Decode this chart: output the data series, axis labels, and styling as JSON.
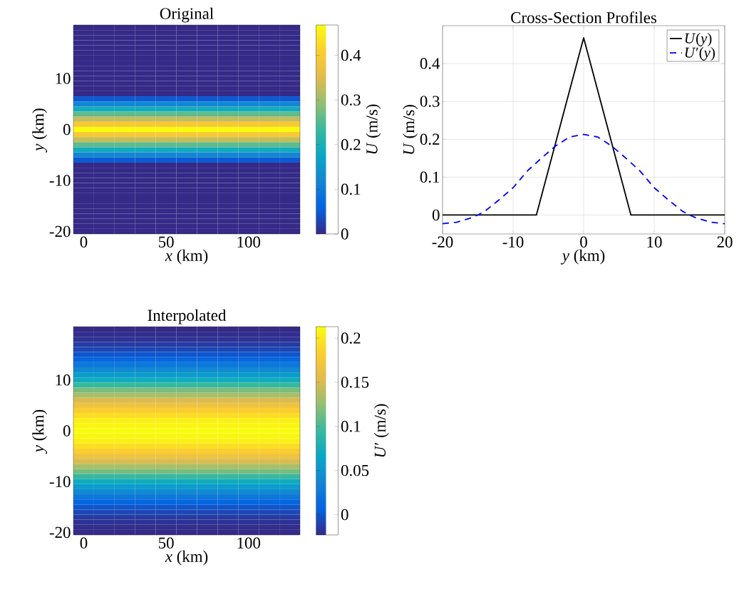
{
  "chart_data": [
    {
      "type": "heatmap",
      "title": "Original",
      "xlabel": "*x* (km)",
      "ylabel": "*y* (km)",
      "clabel": "*U* (m/s)",
      "categories": [
        "0",
        null,
        null,
        null,
        "50",
        null,
        null,
        null,
        "100",
        null,
        null
      ],
      "y_categories": [
        null,
        null,
        null,
        null,
        null,
        null,
        null,
        null,
        null,
        null,
        "10",
        null,
        null,
        null,
        null,
        null,
        null,
        null,
        null,
        null,
        "0",
        null,
        null,
        null,
        null,
        null,
        null,
        null,
        null,
        null,
        "-10",
        null,
        null,
        null,
        null,
        null,
        null,
        null,
        null,
        null,
        "-20"
      ],
      "cells": [
        [
          0,
          0,
          0,
          0,
          0,
          0,
          0,
          0,
          0,
          0,
          0
        ],
        [
          0,
          0,
          0,
          0,
          0,
          0,
          0,
          0,
          0,
          0,
          0
        ],
        [
          0,
          0,
          0,
          0,
          0,
          0,
          0,
          0,
          0,
          0,
          0
        ],
        [
          0,
          0,
          0,
          0,
          0,
          0,
          0,
          0,
          0,
          0,
          0
        ],
        [
          0,
          0,
          0,
          0,
          0,
          0,
          0,
          0,
          0,
          0,
          0
        ],
        [
          0,
          0,
          0,
          0,
          0,
          0,
          0,
          0,
          0,
          0,
          0
        ],
        [
          0,
          0,
          0,
          0,
          0,
          0,
          0,
          0,
          0,
          0,
          0
        ],
        [
          0,
          0,
          0,
          0,
          0,
          0,
          0,
          0,
          0,
          0,
          0
        ],
        [
          0,
          0,
          0,
          0,
          0,
          0,
          0,
          0,
          0,
          0,
          0
        ],
        [
          0,
          0,
          0,
          0,
          0,
          0,
          0,
          0,
          0,
          0,
          0
        ],
        [
          0,
          0,
          0,
          0,
          0,
          0,
          0,
          0,
          0,
          0,
          0
        ],
        [
          0,
          0,
          0,
          0,
          0,
          0,
          0,
          0,
          0,
          0,
          0
        ],
        [
          0,
          0,
          0,
          0,
          0,
          0,
          0,
          0,
          0,
          0,
          0
        ],
        [
          0,
          0,
          0,
          0,
          0,
          0,
          0,
          0,
          0,
          0,
          0
        ],
        [
          0.049,
          0.049,
          0.049,
          0.049,
          0.049,
          0.049,
          0.049,
          0.049,
          0.049,
          0.049,
          0.049
        ],
        [
          0.119,
          0.119,
          0.119,
          0.119,
          0.119,
          0.119,
          0.119,
          0.119,
          0.119,
          0.119,
          0.119
        ],
        [
          0.189,
          0.189,
          0.189,
          0.189,
          0.189,
          0.189,
          0.189,
          0.189,
          0.189,
          0.189,
          0.189
        ],
        [
          0.258,
          0.258,
          0.258,
          0.258,
          0.258,
          0.258,
          0.258,
          0.258,
          0.258,
          0.258,
          0.258
        ],
        [
          0.328,
          0.328,
          0.328,
          0.328,
          0.328,
          0.328,
          0.328,
          0.328,
          0.328,
          0.328,
          0.328
        ],
        [
          0.398,
          0.398,
          0.398,
          0.398,
          0.398,
          0.398,
          0.398,
          0.398,
          0.398,
          0.398,
          0.398
        ],
        [
          0.468,
          0.468,
          0.468,
          0.468,
          0.468,
          0.468,
          0.468,
          0.468,
          0.468,
          0.468,
          0.468
        ],
        [
          0.398,
          0.398,
          0.398,
          0.398,
          0.398,
          0.398,
          0.398,
          0.398,
          0.398,
          0.398,
          0.398
        ],
        [
          0.328,
          0.328,
          0.328,
          0.328,
          0.328,
          0.328,
          0.328,
          0.328,
          0.328,
          0.328,
          0.328
        ],
        [
          0.258,
          0.258,
          0.258,
          0.258,
          0.258,
          0.258,
          0.258,
          0.258,
          0.258,
          0.258,
          0.258
        ],
        [
          0.189,
          0.189,
          0.189,
          0.189,
          0.189,
          0.189,
          0.189,
          0.189,
          0.189,
          0.189,
          0.189
        ],
        [
          0.119,
          0.119,
          0.119,
          0.119,
          0.119,
          0.119,
          0.119,
          0.119,
          0.119,
          0.119,
          0.119
        ],
        [
          0.049,
          0.049,
          0.049,
          0.049,
          0.049,
          0.049,
          0.049,
          0.049,
          0.049,
          0.049,
          0.049
        ],
        [
          0,
          0,
          0,
          0,
          0,
          0,
          0,
          0,
          0,
          0,
          0
        ],
        [
          0,
          0,
          0,
          0,
          0,
          0,
          0,
          0,
          0,
          0,
          0
        ],
        [
          0,
          0,
          0,
          0,
          0,
          0,
          0,
          0,
          0,
          0,
          0
        ],
        [
          0,
          0,
          0,
          0,
          0,
          0,
          0,
          0,
          0,
          0,
          0
        ],
        [
          0,
          0,
          0,
          0,
          0,
          0,
          0,
          0,
          0,
          0,
          0
        ],
        [
          0,
          0,
          0,
          0,
          0,
          0,
          0,
          0,
          0,
          0,
          0
        ],
        [
          0,
          0,
          0,
          0,
          0,
          0,
          0,
          0,
          0,
          0,
          0
        ],
        [
          0,
          0,
          0,
          0,
          0,
          0,
          0,
          0,
          0,
          0,
          0
        ],
        [
          0,
          0,
          0,
          0,
          0,
          0,
          0,
          0,
          0,
          0,
          0
        ],
        [
          0,
          0,
          0,
          0,
          0,
          0,
          0,
          0,
          0,
          0,
          0
        ],
        [
          0,
          0,
          0,
          0,
          0,
          0,
          0,
          0,
          0,
          0,
          0
        ],
        [
          0,
          0,
          0,
          0,
          0,
          0,
          0,
          0,
          0,
          0,
          0
        ],
        [
          0,
          0,
          0,
          0,
          0,
          0,
          0,
          0,
          0,
          0,
          0
        ],
        [
          0,
          0,
          0,
          0,
          0,
          0,
          0,
          0,
          0,
          0,
          0
        ]
      ],
      "clim": [
        0,
        0.468
      ],
      "cticks": [
        0,
        0.1,
        0.2,
        0.3,
        0.4
      ]
    },
    {
      "type": "line",
      "title": "Cross-Section Profiles",
      "xlabel": "*y* (km)",
      "ylabel": "*U* (m/s)",
      "xlim": [
        -20,
        20
      ],
      "xticks": [
        -20,
        -10,
        0,
        10,
        20
      ],
      "ylim": [
        -0.05,
        0.5
      ],
      "yticks": [
        0,
        0.1,
        0.2,
        0.3,
        0.4
      ],
      "grid": true,
      "legend": "top right",
      "series": [
        {
          "name": "*U*(*y*)",
          "color": "#000000",
          "line_style": "solid",
          "x": [
            -20,
            -6.7,
            0,
            6.7,
            20
          ],
          "values": [
            0,
            0,
            0.468,
            0,
            0
          ]
        },
        {
          "name": "*U*′(*y*)",
          "color": "#0000ff",
          "line_style": "dashed",
          "x": [
            -20,
            -18,
            -16,
            -15,
            -14,
            -12,
            -10,
            -8,
            -6,
            -4,
            -2,
            0,
            2,
            4,
            6,
            8,
            10,
            12,
            14,
            15,
            16,
            18,
            20
          ],
          "values": [
            -0.023,
            -0.019,
            -0.008,
            0,
            0.01,
            0.04,
            0.072,
            0.116,
            0.15,
            0.182,
            0.206,
            0.213,
            0.206,
            0.182,
            0.15,
            0.116,
            0.072,
            0.04,
            0.01,
            0,
            -0.008,
            -0.019,
            -0.023
          ]
        }
      ]
    },
    {
      "type": "heatmap",
      "title": "Interpolated",
      "xlabel": "*x* (km)",
      "ylabel": "*y* (km)",
      "clabel": "*U*′ (m/s)",
      "categories": [
        "0",
        null,
        null,
        null,
        "50",
        null,
        null,
        null,
        "100",
        null,
        null
      ],
      "y_categories": [
        null,
        null,
        null,
        null,
        null,
        null,
        null,
        null,
        null,
        null,
        "10",
        null,
        null,
        null,
        null,
        null,
        null,
        null,
        null,
        null,
        "0",
        null,
        null,
        null,
        null,
        null,
        null,
        null,
        null,
        null,
        "-10",
        null,
        null,
        null,
        null,
        null,
        null,
        null,
        null,
        null,
        "-20"
      ],
      "cells": [
        [
          -0.023,
          -0.023,
          -0.023,
          -0.023,
          -0.023,
          -0.023,
          -0.023,
          -0.023,
          -0.023,
          -0.023,
          -0.023
        ],
        [
          -0.021,
          -0.021,
          -0.021,
          -0.021,
          -0.021,
          -0.021,
          -0.021,
          -0.021,
          -0.021,
          -0.021,
          -0.021
        ],
        [
          -0.019,
          -0.019,
          -0.019,
          -0.019,
          -0.019,
          -0.019,
          -0.019,
          -0.019,
          -0.019,
          -0.019,
          -0.019
        ],
        [
          -0.014,
          -0.014,
          -0.014,
          -0.014,
          -0.014,
          -0.014,
          -0.014,
          -0.014,
          -0.014,
          -0.014,
          -0.014
        ],
        [
          -0.008,
          -0.008,
          -0.008,
          -0.008,
          -0.008,
          -0.008,
          -0.008,
          -0.008,
          -0.008,
          -0.008,
          -0.008
        ],
        [
          0,
          0,
          0,
          0,
          0,
          0,
          0,
          0,
          0,
          0,
          0
        ],
        [
          0.01,
          0.01,
          0.01,
          0.01,
          0.01,
          0.01,
          0.01,
          0.01,
          0.01,
          0.01,
          0.01
        ],
        [
          0.025,
          0.025,
          0.025,
          0.025,
          0.025,
          0.025,
          0.025,
          0.025,
          0.025,
          0.025,
          0.025
        ],
        [
          0.04,
          0.04,
          0.04,
          0.04,
          0.04,
          0.04,
          0.04,
          0.04,
          0.04,
          0.04,
          0.04
        ],
        [
          0.056,
          0.056,
          0.056,
          0.056,
          0.056,
          0.056,
          0.056,
          0.056,
          0.056,
          0.056,
          0.056
        ],
        [
          0.072,
          0.072,
          0.072,
          0.072,
          0.072,
          0.072,
          0.072,
          0.072,
          0.072,
          0.072,
          0.072
        ],
        [
          0.094,
          0.094,
          0.094,
          0.094,
          0.094,
          0.094,
          0.094,
          0.094,
          0.094,
          0.094,
          0.094
        ],
        [
          0.116,
          0.116,
          0.116,
          0.116,
          0.116,
          0.116,
          0.116,
          0.116,
          0.116,
          0.116,
          0.116
        ],
        [
          0.133,
          0.133,
          0.133,
          0.133,
          0.133,
          0.133,
          0.133,
          0.133,
          0.133,
          0.133,
          0.133
        ],
        [
          0.15,
          0.15,
          0.15,
          0.15,
          0.15,
          0.15,
          0.15,
          0.15,
          0.15,
          0.15,
          0.15
        ],
        [
          0.166,
          0.166,
          0.166,
          0.166,
          0.166,
          0.166,
          0.166,
          0.166,
          0.166,
          0.166,
          0.166
        ],
        [
          0.182,
          0.182,
          0.182,
          0.182,
          0.182,
          0.182,
          0.182,
          0.182,
          0.182,
          0.182,
          0.182
        ],
        [
          0.194,
          0.194,
          0.194,
          0.194,
          0.194,
          0.194,
          0.194,
          0.194,
          0.194,
          0.194,
          0.194
        ],
        [
          0.206,
          0.206,
          0.206,
          0.206,
          0.206,
          0.206,
          0.206,
          0.206,
          0.206,
          0.206,
          0.206
        ],
        [
          0.21,
          0.21,
          0.21,
          0.21,
          0.21,
          0.21,
          0.21,
          0.21,
          0.21,
          0.21,
          0.21
        ],
        [
          0.213,
          0.213,
          0.213,
          0.213,
          0.213,
          0.213,
          0.213,
          0.213,
          0.213,
          0.213,
          0.213
        ],
        [
          0.21,
          0.21,
          0.21,
          0.21,
          0.21,
          0.21,
          0.21,
          0.21,
          0.21,
          0.21,
          0.21
        ],
        [
          0.206,
          0.206,
          0.206,
          0.206,
          0.206,
          0.206,
          0.206,
          0.206,
          0.206,
          0.206,
          0.206
        ],
        [
          0.194,
          0.194,
          0.194,
          0.194,
          0.194,
          0.194,
          0.194,
          0.194,
          0.194,
          0.194,
          0.194
        ],
        [
          0.182,
          0.182,
          0.182,
          0.182,
          0.182,
          0.182,
          0.182,
          0.182,
          0.182,
          0.182,
          0.182
        ],
        [
          0.166,
          0.166,
          0.166,
          0.166,
          0.166,
          0.166,
          0.166,
          0.166,
          0.166,
          0.166,
          0.166
        ],
        [
          0.15,
          0.15,
          0.15,
          0.15,
          0.15,
          0.15,
          0.15,
          0.15,
          0.15,
          0.15,
          0.15
        ],
        [
          0.133,
          0.133,
          0.133,
          0.133,
          0.133,
          0.133,
          0.133,
          0.133,
          0.133,
          0.133,
          0.133
        ],
        [
          0.116,
          0.116,
          0.116,
          0.116,
          0.116,
          0.116,
          0.116,
          0.116,
          0.116,
          0.116,
          0.116
        ],
        [
          0.094,
          0.094,
          0.094,
          0.094,
          0.094,
          0.094,
          0.094,
          0.094,
          0.094,
          0.094,
          0.094
        ],
        [
          0.072,
          0.072,
          0.072,
          0.072,
          0.072,
          0.072,
          0.072,
          0.072,
          0.072,
          0.072,
          0.072
        ],
        [
          0.056,
          0.056,
          0.056,
          0.056,
          0.056,
          0.056,
          0.056,
          0.056,
          0.056,
          0.056,
          0.056
        ],
        [
          0.04,
          0.04,
          0.04,
          0.04,
          0.04,
          0.04,
          0.04,
          0.04,
          0.04,
          0.04,
          0.04
        ],
        [
          0.025,
          0.025,
          0.025,
          0.025,
          0.025,
          0.025,
          0.025,
          0.025,
          0.025,
          0.025,
          0.025
        ],
        [
          0.01,
          0.01,
          0.01,
          0.01,
          0.01,
          0.01,
          0.01,
          0.01,
          0.01,
          0.01,
          0.01
        ],
        [
          0,
          0,
          0,
          0,
          0,
          0,
          0,
          0,
          0,
          0,
          0
        ],
        [
          -0.008,
          -0.008,
          -0.008,
          -0.008,
          -0.008,
          -0.008,
          -0.008,
          -0.008,
          -0.008,
          -0.008,
          -0.008
        ],
        [
          -0.014,
          -0.014,
          -0.014,
          -0.014,
          -0.014,
          -0.014,
          -0.014,
          -0.014,
          -0.014,
          -0.014,
          -0.014
        ],
        [
          -0.019,
          -0.019,
          -0.019,
          -0.019,
          -0.019,
          -0.019,
          -0.019,
          -0.019,
          -0.019,
          -0.019,
          -0.019
        ],
        [
          -0.021,
          -0.021,
          -0.021,
          -0.021,
          -0.021,
          -0.021,
          -0.021,
          -0.021,
          -0.021,
          -0.021,
          -0.021
        ],
        [
          -0.023,
          -0.023,
          -0.023,
          -0.023,
          -0.023,
          -0.023,
          -0.023,
          -0.023,
          -0.023,
          -0.023,
          -0.023
        ]
      ],
      "clim": [
        -0.023,
        0.213
      ],
      "cticks": [
        0,
        0.05,
        0.1,
        0.15,
        0.2
      ]
    }
  ]
}
